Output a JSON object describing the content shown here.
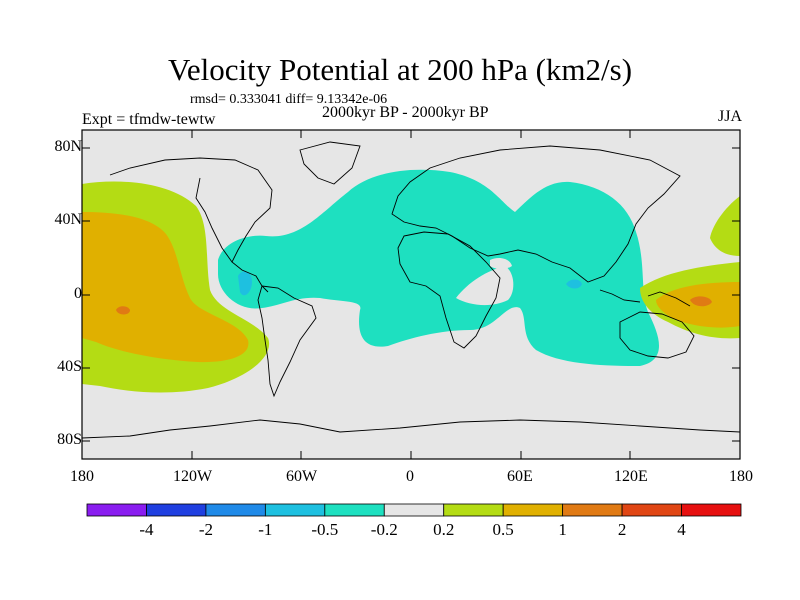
{
  "title": "Velocity Potential at 200 hPa (km2/s)",
  "stats_line": "rmsd= 0.333041 diff= 9.13342e-06",
  "experiment_label": "Expt = tfmdw-tewtw",
  "period_label": "2000kyr BP - 2000kyr BP",
  "season_label": "JJA",
  "y_axis_labels": [
    "80N",
    "40N",
    "0",
    "40S",
    "80S"
  ],
  "x_axis_labels": [
    "180",
    "120W",
    "60W",
    "0",
    "60E",
    "120E",
    "180"
  ],
  "colorbar": {
    "labels": [
      "-4",
      "-2",
      "-1",
      "-0.5",
      "-0.2",
      "0.2",
      "0.5",
      "1",
      "2",
      "4"
    ],
    "colors": [
      "#8a1df0",
      "#1f3fe0",
      "#1f8ae8",
      "#1ec0e0",
      "#1ee0c0",
      "#e6e6e6",
      "#b4dc14",
      "#e0b000",
      "#e07a14",
      "#e04614",
      "#e61010"
    ]
  },
  "map_colors": {
    "background": "#e6e6e6",
    "neg_weak": "#1ee0c0",
    "neg_mid": "#1ec0e0",
    "pos_weak": "#b4dc14",
    "pos_mid": "#e0b000",
    "pos_strong": "#e07a14"
  }
}
